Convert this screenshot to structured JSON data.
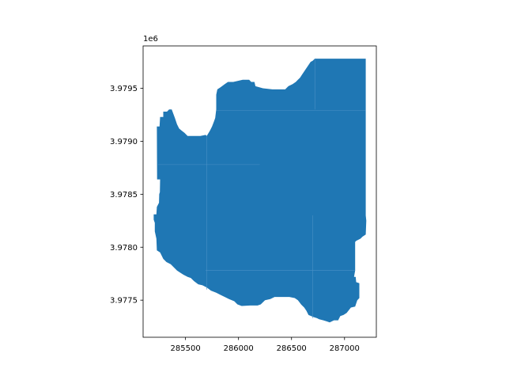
{
  "chart_data": {
    "type": "map",
    "title": "",
    "xlabel": "",
    "ylabel": "",
    "y_offset_label": "1e6",
    "xlim": [
      285100,
      287300
    ],
    "ylim": [
      3977150,
      3979900
    ],
    "fill_color": "#1f77b4",
    "internal_line_color": "#4b91c6",
    "x_ticks": [
      {
        "value": 285500,
        "label": "285500"
      },
      {
        "value": 286000,
        "label": "286000"
      },
      {
        "value": 286500,
        "label": "286500"
      },
      {
        "value": 287000,
        "label": "287000"
      }
    ],
    "y_ticks": [
      {
        "value": 3977500,
        "label": "3.9775"
      },
      {
        "value": 3978000,
        "label": "3.9780"
      },
      {
        "value": 3978500,
        "label": "3.9785"
      },
      {
        "value": 3979000,
        "label": "3.9790"
      },
      {
        "value": 3979500,
        "label": "3.9795"
      }
    ],
    "polygon": [
      [
        285260,
        3978640
      ],
      [
        285232,
        3978640
      ],
      [
        285230,
        3979140
      ],
      [
        285255,
        3979140
      ],
      [
        285260,
        3979230
      ],
      [
        285290,
        3979230
      ],
      [
        285290,
        3979280
      ],
      [
        285325,
        3979280
      ],
      [
        285345,
        3979300
      ],
      [
        285370,
        3979300
      ],
      [
        285385,
        3979260
      ],
      [
        285400,
        3979220
      ],
      [
        285420,
        3979160
      ],
      [
        285440,
        3979120
      ],
      [
        285465,
        3979100
      ],
      [
        285490,
        3979080
      ],
      [
        285520,
        3979050
      ],
      [
        285560,
        3979050
      ],
      [
        285640,
        3979050
      ],
      [
        285690,
        3979060
      ],
      [
        285700,
        3979050
      ],
      [
        285730,
        3979100
      ],
      [
        285750,
        3979140
      ],
      [
        285770,
        3979190
      ],
      [
        285780,
        3979220
      ],
      [
        285790,
        3979300
      ],
      [
        285790,
        3979440
      ],
      [
        285800,
        3979490
      ],
      [
        285830,
        3979510
      ],
      [
        285870,
        3979540
      ],
      [
        285900,
        3979560
      ],
      [
        285950,
        3979560
      ],
      [
        286040,
        3979580
      ],
      [
        286100,
        3979580
      ],
      [
        286120,
        3979560
      ],
      [
        286150,
        3979560
      ],
      [
        286160,
        3979520
      ],
      [
        286230,
        3979500
      ],
      [
        286320,
        3979490
      ],
      [
        286440,
        3979490
      ],
      [
        286470,
        3979520
      ],
      [
        286510,
        3979540
      ],
      [
        286540,
        3979560
      ],
      [
        286560,
        3979580
      ],
      [
        286580,
        3979600
      ],
      [
        286600,
        3979630
      ],
      [
        286620,
        3979660
      ],
      [
        286640,
        3979690
      ],
      [
        286660,
        3979720
      ],
      [
        286680,
        3979750
      ],
      [
        286700,
        3979760
      ],
      [
        286720,
        3979780
      ],
      [
        287200,
        3979780
      ],
      [
        287200,
        3978900
      ],
      [
        287200,
        3978300
      ],
      [
        287205,
        3978250
      ],
      [
        287200,
        3978120
      ],
      [
        287170,
        3978100
      ],
      [
        287150,
        3978080
      ],
      [
        287110,
        3978060
      ],
      [
        287100,
        3978050
      ],
      [
        287100,
        3977780
      ],
      [
        287090,
        3977720
      ],
      [
        287105,
        3977720
      ],
      [
        287110,
        3977670
      ],
      [
        287140,
        3977660
      ],
      [
        287140,
        3977520
      ],
      [
        287120,
        3977500
      ],
      [
        287100,
        3977440
      ],
      [
        287060,
        3977430
      ],
      [
        287020,
        3977380
      ],
      [
        286990,
        3977360
      ],
      [
        286960,
        3977350
      ],
      [
        286940,
        3977310
      ],
      [
        286900,
        3977310
      ],
      [
        286860,
        3977290
      ],
      [
        286830,
        3977300
      ],
      [
        286800,
        3977310
      ],
      [
        286760,
        3977320
      ],
      [
        286740,
        3977330
      ],
      [
        286710,
        3977340
      ],
      [
        286660,
        3977360
      ],
      [
        286640,
        3977400
      ],
      [
        286620,
        3977430
      ],
      [
        286590,
        3977460
      ],
      [
        286560,
        3977500
      ],
      [
        286530,
        3977520
      ],
      [
        286480,
        3977530
      ],
      [
        286340,
        3977530
      ],
      [
        286300,
        3977510
      ],
      [
        286250,
        3977500
      ],
      [
        286210,
        3977460
      ],
      [
        286180,
        3977450
      ],
      [
        286110,
        3977450
      ],
      [
        286030,
        3977445
      ],
      [
        285990,
        3977460
      ],
      [
        285960,
        3977490
      ],
      [
        285910,
        3977510
      ],
      [
        285870,
        3977530
      ],
      [
        285830,
        3977550
      ],
      [
        285790,
        3977570
      ],
      [
        285740,
        3977590
      ],
      [
        285700,
        3977620
      ],
      [
        285660,
        3977640
      ],
      [
        285620,
        3977650
      ],
      [
        285580,
        3977680
      ],
      [
        285550,
        3977710
      ],
      [
        285520,
        3977720
      ],
      [
        285480,
        3977740
      ],
      [
        285450,
        3977760
      ],
      [
        285420,
        3977780
      ],
      [
        285390,
        3977810
      ],
      [
        285360,
        3977840
      ],
      [
        285320,
        3977860
      ],
      [
        285290,
        3977890
      ],
      [
        285260,
        3977950
      ],
      [
        285230,
        3977970
      ],
      [
        285225,
        3978080
      ],
      [
        285210,
        3978150
      ],
      [
        285210,
        3978230
      ],
      [
        285200,
        3978260
      ],
      [
        285200,
        3978310
      ],
      [
        285225,
        3978310
      ],
      [
        285230,
        3978380
      ],
      [
        285250,
        3978420
      ],
      [
        285252,
        3978500
      ],
      [
        285258,
        3978520
      ],
      [
        285260,
        3978640
      ]
    ],
    "internal_lines": [
      [
        [
          285700,
          3977600
        ],
        [
          285700,
          3979050
        ]
      ],
      [
        [
          285240,
          3978780
        ],
        [
          286200,
          3978780
        ]
      ],
      [
        [
          285790,
          3979290
        ],
        [
          287200,
          3979290
        ]
      ],
      [
        [
          286720,
          3979300
        ],
        [
          286720,
          3979780
        ]
      ],
      [
        [
          286700,
          3977330
        ],
        [
          286700,
          3978300
        ]
      ],
      [
        [
          285690,
          3977780
        ],
        [
          287100,
          3977780
        ]
      ]
    ]
  }
}
